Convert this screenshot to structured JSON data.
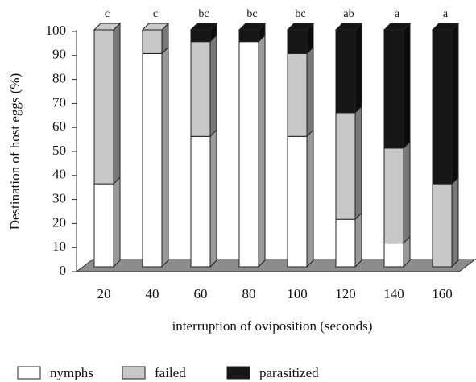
{
  "chart_data": {
    "type": "bar",
    "stacked": true,
    "ylabel": "Destination of host eggs (%)",
    "xlabel": "interruption of oviposition (seconds)",
    "categories": [
      "20",
      "40",
      "60",
      "80",
      "100",
      "120",
      "140",
      "160"
    ],
    "annotations": [
      "c",
      "c",
      "bc",
      "bc",
      "bc",
      "ab",
      "a",
      "a"
    ],
    "series": [
      {
        "name": "nymphs",
        "color": "#ffffff",
        "values": [
          35,
          90,
          55,
          95,
          55,
          20,
          10,
          0
        ]
      },
      {
        "name": "failed",
        "color": "#c8c8c8",
        "values": [
          65,
          10,
          40,
          0,
          35,
          45,
          40,
          35
        ]
      },
      {
        "name": "parasitized",
        "color": "#161616",
        "values": [
          0,
          0,
          5,
          5,
          10,
          35,
          50,
          65
        ]
      }
    ],
    "ylim": [
      0,
      100
    ],
    "yticks": [
      0,
      10,
      20,
      30,
      40,
      50,
      60,
      70,
      80,
      90,
      100
    ]
  }
}
